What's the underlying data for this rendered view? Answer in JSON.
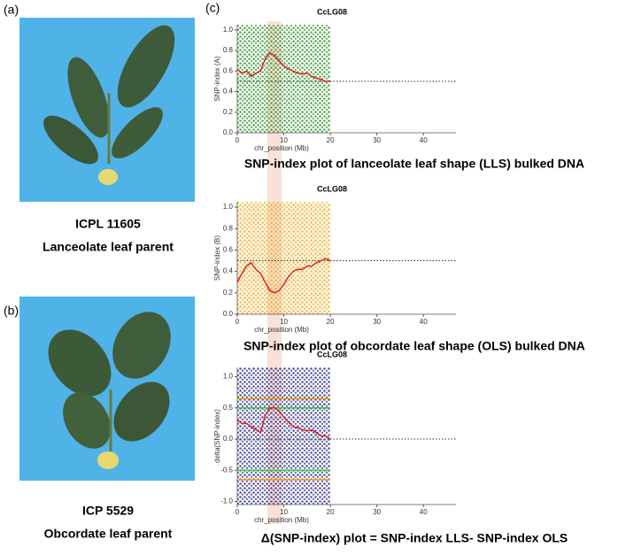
{
  "panels": {
    "a": "(a)",
    "b": "(b)",
    "c": "(c)"
  },
  "photos": [
    {
      "name": "ICPL 11605",
      "description": "Lanceolate leaf parent"
    },
    {
      "name": "ICP 5529",
      "description": "Obcordate leaf parent"
    }
  ],
  "chart_data": [
    {
      "type": "line",
      "title": "CcLG08",
      "x_label": "chr_position (Mb)",
      "y_label": "SNP-index (A)",
      "caption": "SNP-index plot of lanceolate leaf shape (LLS) bulked DNA",
      "point_color": "#1a8a1a",
      "baseline": 0.5,
      "x": [
        0,
        1,
        2,
        3,
        4,
        5,
        6,
        7,
        8,
        9,
        10,
        11,
        12,
        13,
        14,
        15,
        16,
        17,
        18,
        19,
        20
      ],
      "series": [
        {
          "color": "#e02020",
          "values": [
            0.62,
            0.58,
            0.6,
            0.55,
            0.58,
            0.6,
            0.72,
            0.78,
            0.75,
            0.7,
            0.65,
            0.62,
            0.6,
            0.58,
            0.57,
            0.58,
            0.55,
            0.53,
            0.52,
            0.5,
            0.5
          ]
        }
      ],
      "xlim": [
        0,
        47
      ],
      "ylim": [
        0,
        1.05
      ],
      "xticks": [
        0,
        10,
        20,
        30,
        40
      ],
      "yticks": [
        {
          "value": 0,
          "label": "0.0"
        },
        0.2,
        0.4,
        0.6,
        0.8,
        {
          "value": 1,
          "label": "1.0"
        }
      ]
    },
    {
      "type": "line",
      "title": "CcLG08",
      "x_label": "chr_position (Mb)",
      "y_label": "SNP-index (B)",
      "caption": "SNP-index plot of obcordate leaf shape (OLS) bulked DNA",
      "point_color": "#f5a000",
      "baseline": 0.5,
      "x": [
        0,
        1,
        2,
        3,
        4,
        5,
        6,
        7,
        8,
        9,
        10,
        11,
        12,
        13,
        14,
        15,
        16,
        17,
        18,
        19,
        20
      ],
      "series": [
        {
          "color": "#e02020",
          "values": [
            0.3,
            0.38,
            0.45,
            0.48,
            0.42,
            0.38,
            0.3,
            0.22,
            0.2,
            0.22,
            0.28,
            0.35,
            0.4,
            0.42,
            0.42,
            0.45,
            0.45,
            0.48,
            0.5,
            0.52,
            0.5
          ]
        }
      ],
      "xlim": [
        0,
        47
      ],
      "ylim": [
        0,
        1.05
      ],
      "xticks": [
        0,
        10,
        20,
        30,
        40
      ],
      "yticks": [
        {
          "value": 0,
          "label": "0.0"
        },
        0.2,
        0.4,
        0.6,
        0.8,
        {
          "value": 1,
          "label": "1.0"
        }
      ]
    },
    {
      "type": "line",
      "title": "CcLG08",
      "x_label": "chr_position (Mb)",
      "y_label": "delta(SNP-index)",
      "caption": "Δ(SNP-index) plot = SNP-index LLS- SNP-index OLS",
      "point_color": "#1a1a8a",
      "baseline": 0,
      "thresholds": [
        {
          "value": 0.65,
          "color": "#f5a000"
        },
        {
          "value": -0.65,
          "color": "#f5a000"
        },
        {
          "value": 0.5,
          "color": "#30d030"
        },
        {
          "value": -0.5,
          "color": "#30d030"
        }
      ],
      "x": [
        0,
        1,
        2,
        3,
        4,
        5,
        6,
        7,
        8,
        9,
        10,
        11,
        12,
        13,
        14,
        15,
        16,
        17,
        18,
        19,
        20
      ],
      "series": [
        {
          "color": "#e02020",
          "values": [
            0.3,
            0.25,
            0.25,
            0.2,
            0.15,
            0.1,
            0.38,
            0.5,
            0.5,
            0.45,
            0.35,
            0.27,
            0.2,
            0.18,
            0.15,
            0.13,
            0.15,
            0.1,
            0.05,
            0.05,
            0.0
          ]
        }
      ],
      "xlim": [
        0,
        47
      ],
      "ylim": [
        -1.05,
        1.15
      ],
      "xticks": [
        0,
        10,
        20,
        30,
        40
      ],
      "yticks": [
        {
          "value": -1,
          "label": "-1.0"
        },
        -0.5,
        {
          "value": 0,
          "label": "0.0"
        },
        0.5,
        {
          "value": 1,
          "label": "1.0"
        }
      ]
    }
  ]
}
